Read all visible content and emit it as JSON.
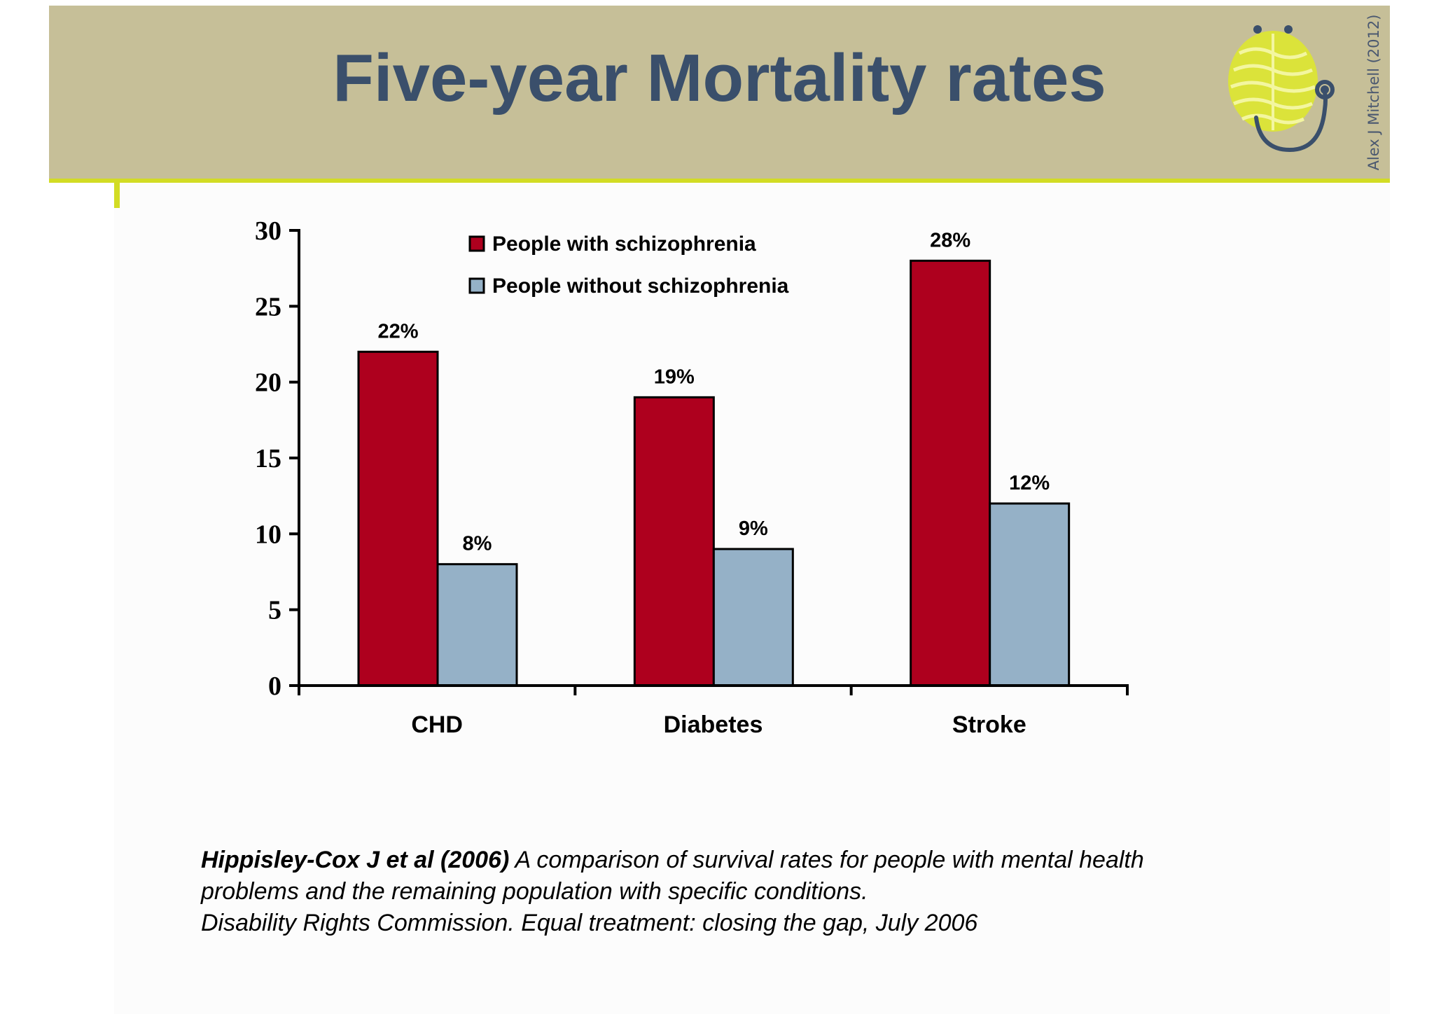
{
  "slide": {
    "title": "Five-year Mortality rates",
    "credit": "Alex J Mitchell (2012)"
  },
  "colors": {
    "header_band": "#c6bf98",
    "accent_rule": "#d2dc24",
    "title_text": "#3a4f6b",
    "logo": "#dbe33a",
    "logo_line": "#3a4f6b"
  },
  "icons": [
    "brain-stethoscope-logo-icon"
  ],
  "chart_data": {
    "type": "bar",
    "title": "",
    "xlabel": "",
    "ylabel": "",
    "categories": [
      "CHD",
      "Diabetes",
      "Stroke"
    ],
    "series": [
      {
        "name": "People with schizophrenia",
        "color": "#ae001e",
        "values": [
          22,
          19,
          28
        ],
        "labels": [
          "22%",
          "19%",
          "28%"
        ]
      },
      {
        "name": "People without schizophrenia",
        "color": "#95b1c7",
        "values": [
          8,
          9,
          12
        ],
        "labels": [
          "8%",
          "9%",
          "12%"
        ]
      }
    ],
    "ylim": [
      0,
      30
    ],
    "yticks": [
      0,
      5,
      10,
      15,
      20,
      25,
      30
    ],
    "grid": false,
    "legend": "top-center"
  },
  "citation": {
    "line1_bold": "Hippisley-Cox J et al (2006)",
    "line1_rest": " A comparison of survival rates for people with mental health",
    "line2": "problems and the remaining population with specific conditions.",
    "line3": "Disability Rights Commission. Equal treatment: closing the gap, July 2006"
  }
}
